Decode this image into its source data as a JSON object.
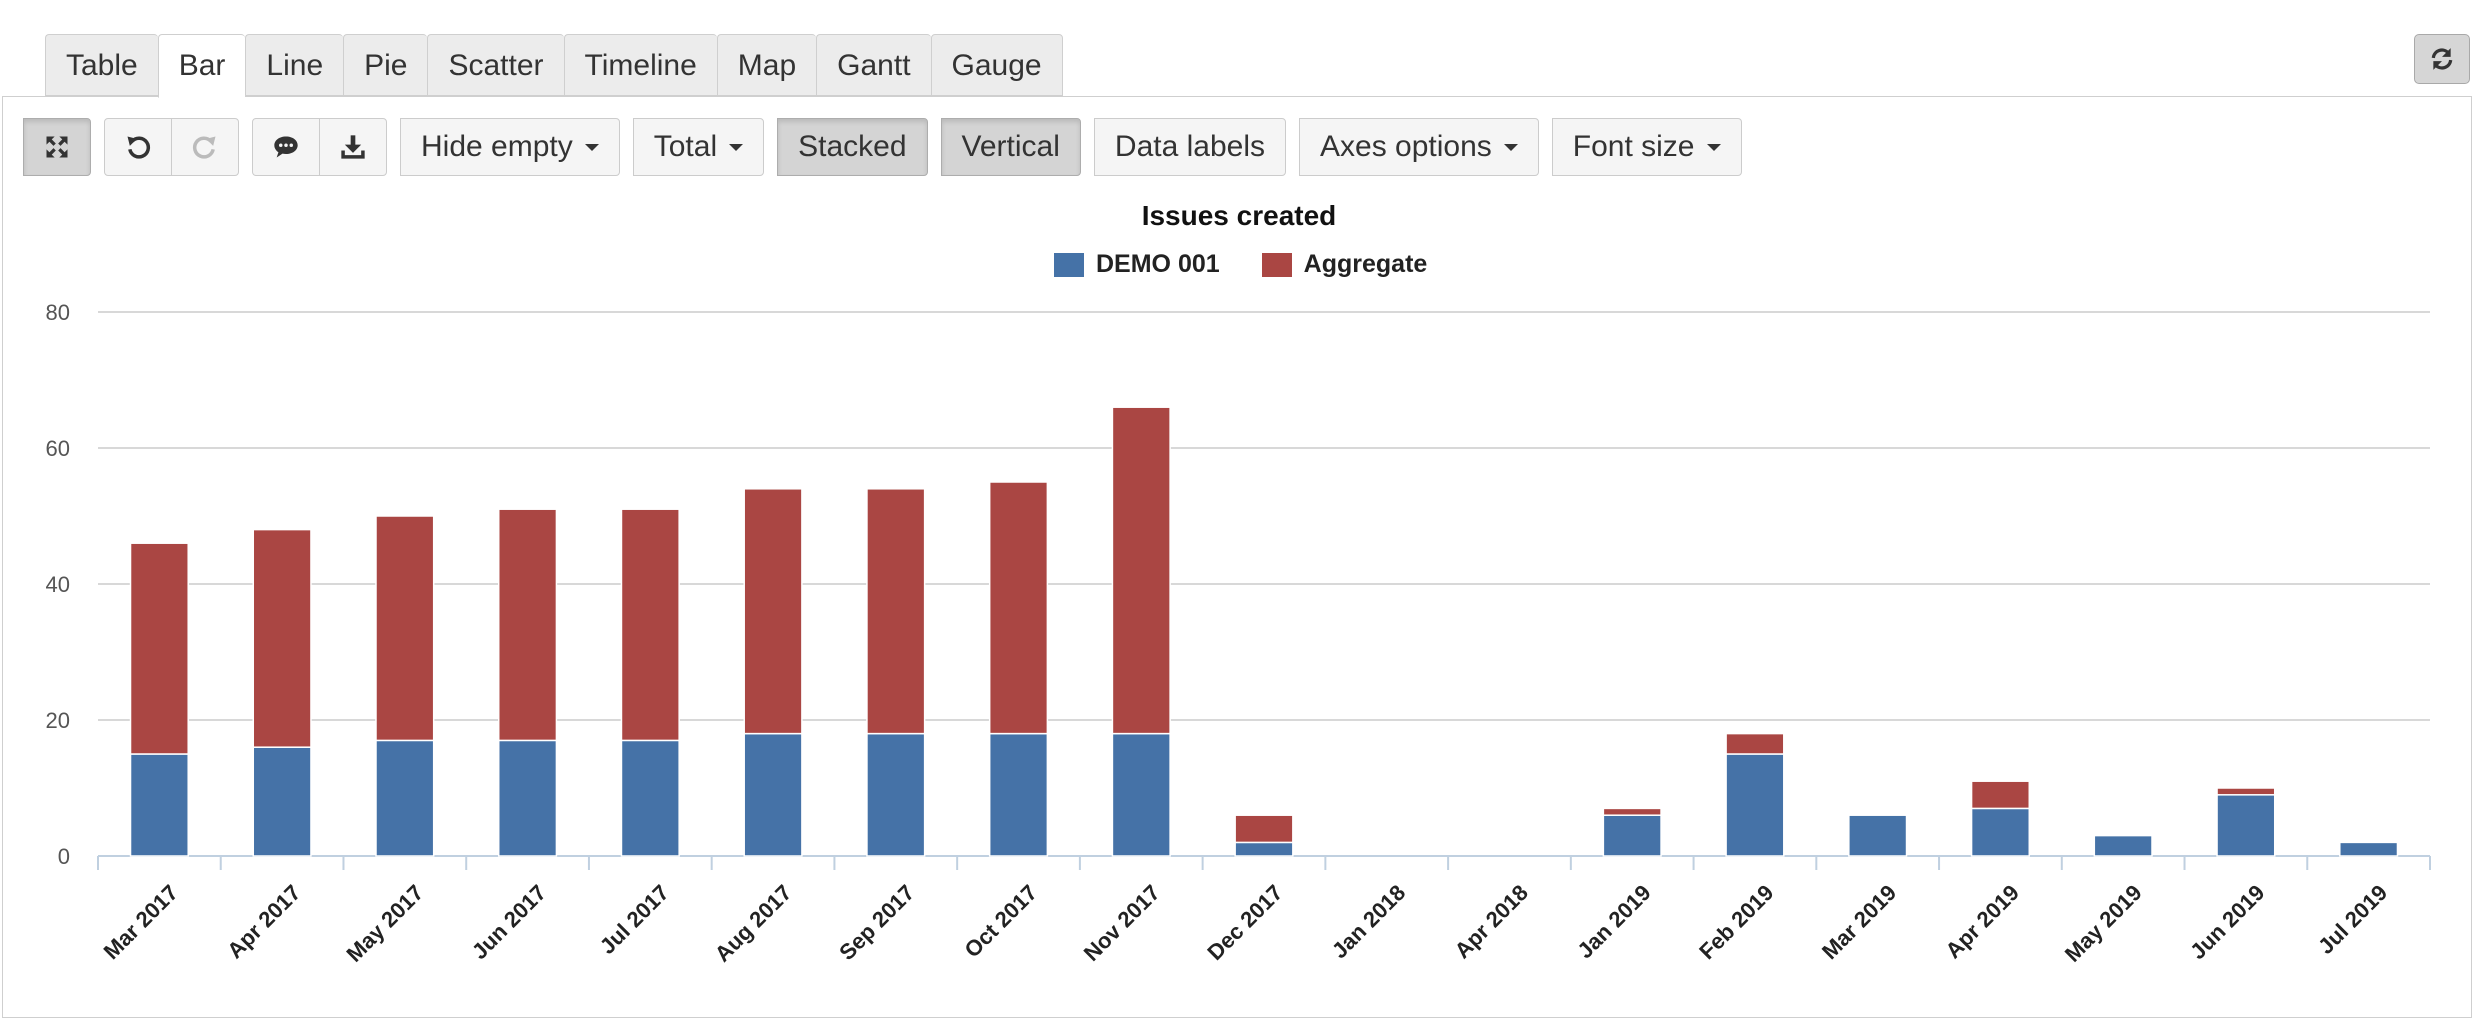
{
  "tabs": [
    {
      "label": "Table",
      "active": false
    },
    {
      "label": "Bar",
      "active": true
    },
    {
      "label": "Line",
      "active": false
    },
    {
      "label": "Pie",
      "active": false
    },
    {
      "label": "Scatter",
      "active": false
    },
    {
      "label": "Timeline",
      "active": false
    },
    {
      "label": "Map",
      "active": false
    },
    {
      "label": "Gantt",
      "active": false
    },
    {
      "label": "Gauge",
      "active": false
    }
  ],
  "toolbar": {
    "hide_empty": "Hide empty",
    "total": "Total",
    "stacked": "Stacked",
    "vertical": "Vertical",
    "data_labels": "Data labels",
    "axes_options": "Axes options",
    "font_size": "Font size"
  },
  "colors": {
    "demo": "#4572a7",
    "aggregate": "#aa4643",
    "grid": "#d8d8d8",
    "axis": "#c0d0e0"
  },
  "chart_data": {
    "type": "bar",
    "stacked": true,
    "title": "Issues created",
    "categories": [
      "Mar 2017",
      "Apr 2017",
      "May 2017",
      "Jun 2017",
      "Jul 2017",
      "Aug 2017",
      "Sep 2017",
      "Oct 2017",
      "Nov 2017",
      "Dec 2017",
      "Jan 2018",
      "Apr 2018",
      "Jan 2019",
      "Feb 2019",
      "Mar 2019",
      "Apr 2019",
      "May 2019",
      "Jun 2019",
      "Jul 2019"
    ],
    "series": [
      {
        "name": "DEMO 001",
        "color": "#4572a7",
        "values": [
          15,
          16,
          17,
          17,
          17,
          18,
          18,
          18,
          18,
          2,
          0,
          0,
          6,
          15,
          6,
          7,
          3,
          9,
          2
        ]
      },
      {
        "name": "Aggregate",
        "color": "#aa4643",
        "values": [
          31,
          32,
          33,
          34,
          34,
          36,
          36,
          37,
          48,
          4,
          0,
          0,
          1,
          3,
          0,
          4,
          0,
          1,
          0
        ]
      }
    ],
    "ylim": [
      0,
      80
    ],
    "yticks": [
      0,
      20,
      40,
      60,
      80
    ],
    "grid": true,
    "legend_position": "top-center"
  }
}
